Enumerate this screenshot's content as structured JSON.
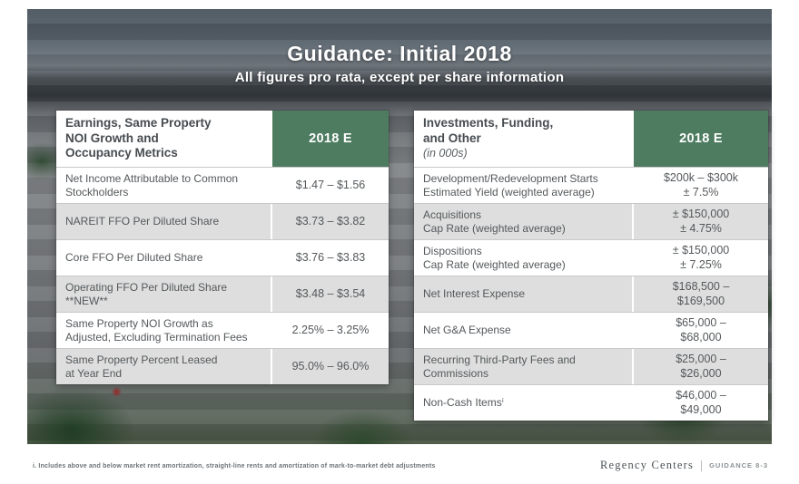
{
  "slide": {
    "title": "Guidance: Initial 2018",
    "subtitle": "All figures pro rata, except per share information"
  },
  "left_table": {
    "header": "Earnings, Same Property\nNOI Growth and\nOccupancy Metrics",
    "column_header": "2018 E",
    "rows": [
      {
        "label": "Net Income Attributable to Common\nStockholders",
        "value": "$1.47 – $1.56"
      },
      {
        "label": "NAREIT FFO Per Diluted Share",
        "value": "$3.73 – $3.82"
      },
      {
        "label": "Core FFO Per Diluted Share",
        "value": "$3.76 – $3.83"
      },
      {
        "label": "Operating FFO Per Diluted Share\n**NEW**",
        "value": "$3.48 – $3.54"
      },
      {
        "label": "Same Property NOI Growth as\nAdjusted, Excluding Termination Fees",
        "value": "2.25% – 3.25%"
      },
      {
        "label": "Same Property Percent Leased\nat Year End",
        "value": "95.0% – 96.0%"
      }
    ]
  },
  "right_table": {
    "header": "Investments, Funding,\nand Other",
    "header_note": "(in 000s)",
    "column_header": "2018 E",
    "rows": [
      {
        "label": "Development/Redevelopment Starts\nEstimated Yield (weighted average)",
        "value": "$200k – $300k\n± 7.5%"
      },
      {
        "label": "Acquisitions\nCap Rate (weighted average)",
        "value": "± $150,000\n± 4.75%"
      },
      {
        "label": "Dispositions\nCap Rate (weighted average)",
        "value": "± $150,000\n± 7.25%"
      },
      {
        "label": "Net Interest Expense",
        "value": "$168,500 –\n$169,500"
      },
      {
        "label": "Net G&A Expense",
        "value": "$65,000 –\n$68,000"
      },
      {
        "label": "Recurring Third-Party Fees and\nCommissions",
        "value": "$25,000 –\n$26,000"
      },
      {
        "label": "Non-Cash Itemsⁱ",
        "value": "$46,000 –\n$49,000"
      }
    ]
  },
  "footer": {
    "footnote": "i.    Includes above and below market rent amortization, straight-line rents and amortization of mark-to-market debt adjustments",
    "brand": "Regency Centers",
    "page_label": "GUIDANCE 8-3"
  },
  "colors": {
    "header_green": "#4e7c61",
    "row_shade": "#dedede"
  }
}
